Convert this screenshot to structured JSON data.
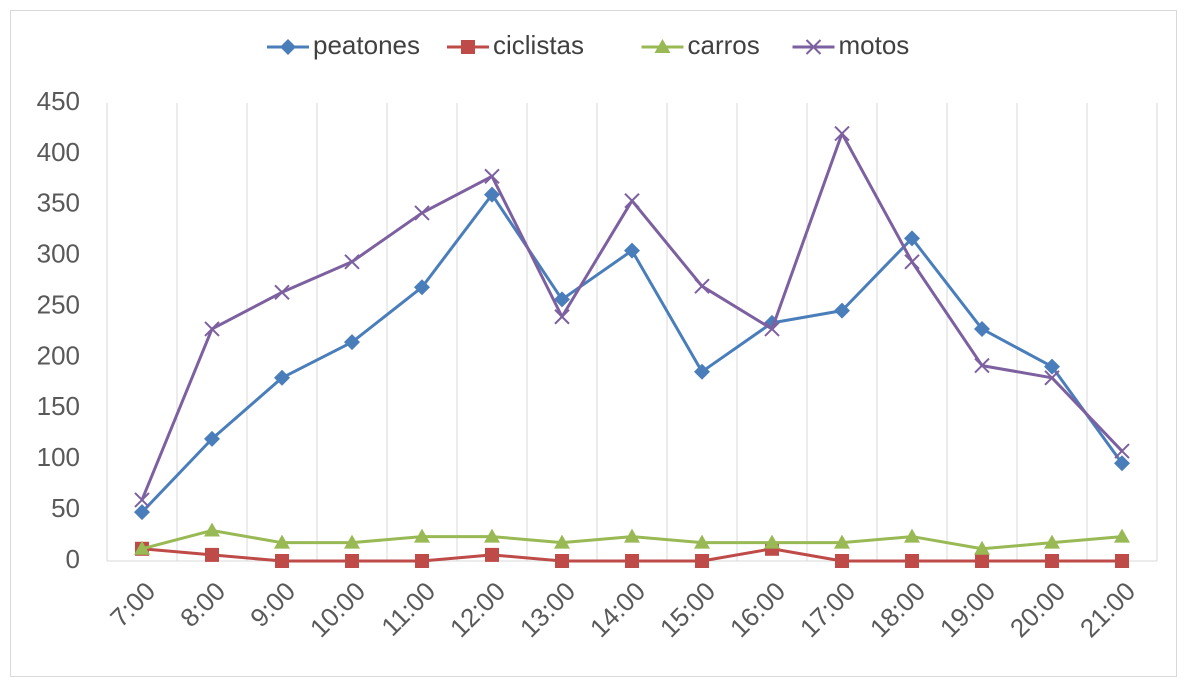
{
  "chart_data": {
    "type": "line",
    "categories": [
      "7:00",
      "8:00",
      "9:00",
      "10:00",
      "11:00",
      "12:00",
      "13:00",
      "14:00",
      "15:00",
      "16:00",
      "17:00",
      "18:00",
      "19:00",
      "20:00",
      "21:00"
    ],
    "series": [
      {
        "name": "peatones",
        "color": "#4a7ebb",
        "marker": "diamond",
        "values": [
          48,
          120,
          180,
          215,
          269,
          360,
          257,
          305,
          186,
          234,
          246,
          317,
          228,
          191,
          96
        ]
      },
      {
        "name": "ciclistas",
        "color": "#be4b48",
        "marker": "square",
        "values": [
          12,
          6,
          0,
          0,
          0,
          6,
          0,
          0,
          0,
          12,
          0,
          0,
          0,
          0,
          0
        ]
      },
      {
        "name": "carros",
        "color": "#98b954",
        "marker": "triangle",
        "values": [
          12,
          30,
          18,
          18,
          24,
          24,
          18,
          24,
          18,
          18,
          18,
          24,
          12,
          18,
          24
        ]
      },
      {
        "name": "motos",
        "color": "#7d60a0",
        "marker": "x",
        "values": [
          60,
          228,
          264,
          294,
          342,
          378,
          240,
          354,
          270,
          228,
          420,
          294,
          192,
          180,
          108
        ]
      }
    ],
    "ylim": [
      0,
      450
    ],
    "yticks": [
      0,
      50,
      100,
      150,
      200,
      250,
      300,
      350,
      400,
      450
    ],
    "grid": "x",
    "legend": "top"
  }
}
